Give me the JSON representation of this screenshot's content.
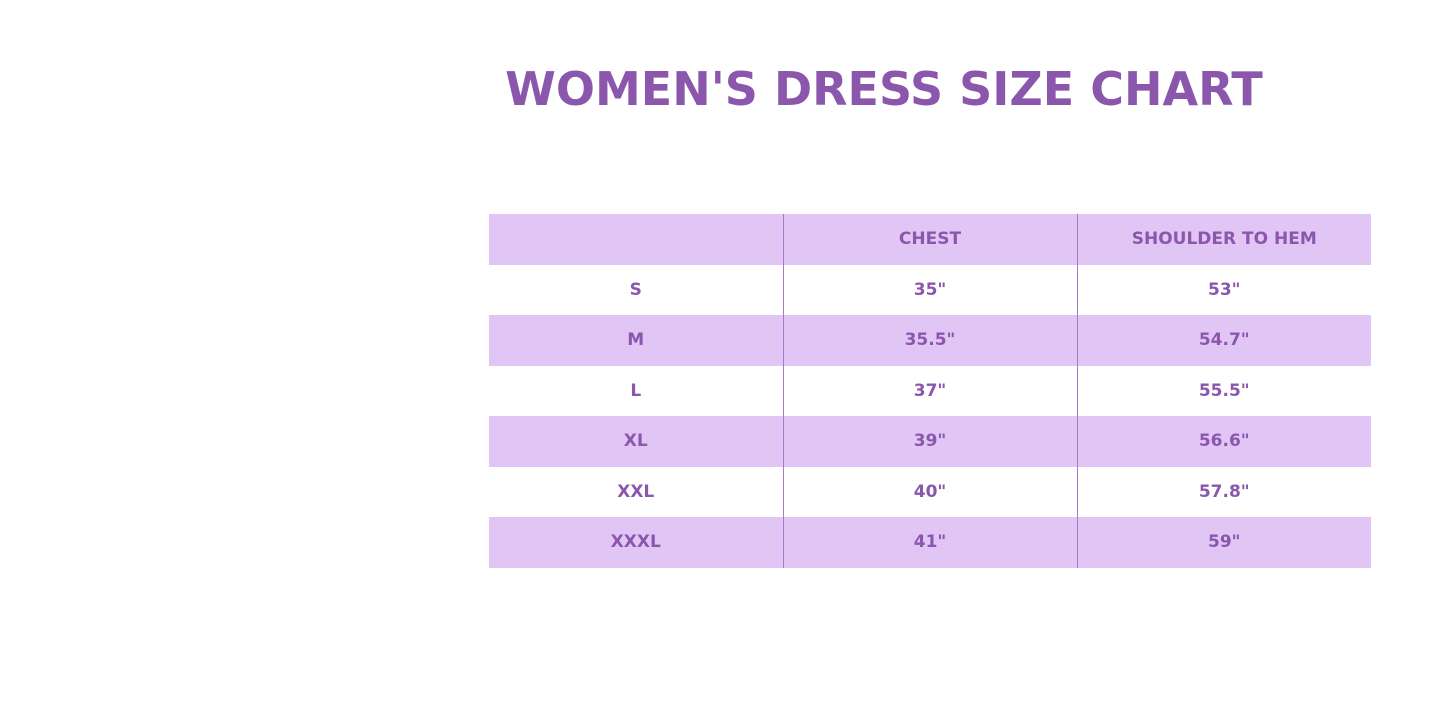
{
  "title": "WOMEN'S DRESS SIZE CHART",
  "colors": {
    "accent": "#8b57ad",
    "row_shade": "#e1c5f4"
  },
  "table": {
    "headers": [
      "",
      "CHEST",
      "SHOULDER TO HEM"
    ],
    "rows": [
      [
        "S",
        "35\"",
        "53\""
      ],
      [
        "M",
        "35.5\"",
        "54.7\""
      ],
      [
        "L",
        "37\"",
        "55.5\""
      ],
      [
        "XL",
        "39\"",
        "56.6\""
      ],
      [
        "XXL",
        "40\"",
        "57.8\""
      ],
      [
        "XXXL",
        "41\"",
        "59\""
      ]
    ]
  }
}
